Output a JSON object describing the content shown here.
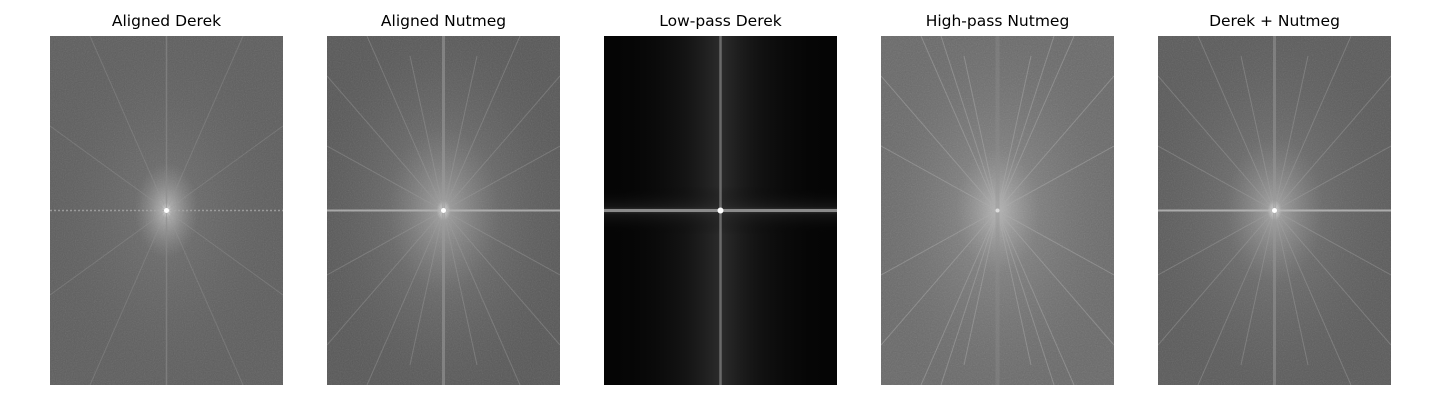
{
  "figure": {
    "panels": [
      {
        "title": "Aligned Derek"
      },
      {
        "title": "Aligned Nutmeg"
      },
      {
        "title": "Low-pass Derek"
      },
      {
        "title": "High-pass Nutmeg"
      },
      {
        "title": "Derek + Nutmeg"
      }
    ]
  }
}
